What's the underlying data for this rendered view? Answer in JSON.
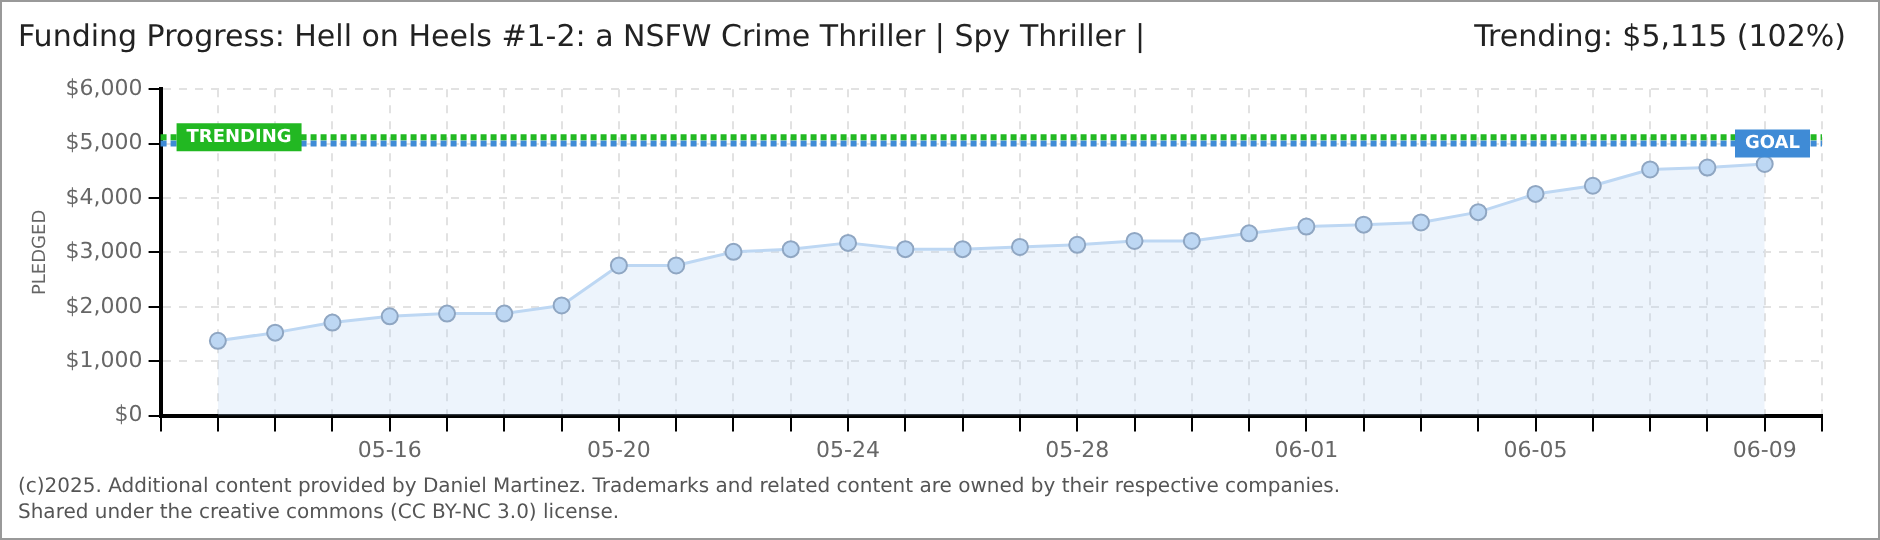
{
  "chart_data": {
    "type": "area",
    "title": "Funding Progress: Hell on Heels #1-2: a NSFW Crime Thriller | Spy Thriller |",
    "subtitle": "Trending:  $5,115 (102%)",
    "ylabel": "PLEDGED",
    "x": [
      "--05-13",
      "--05-14",
      "--05-15",
      "--05-16",
      "--05-17",
      "--05-18",
      "--05-19",
      "--05-20",
      "--05-21",
      "--05-22",
      "--05-23",
      "--05-24",
      "--05-25",
      "--05-26",
      "--05-27",
      "--05-28",
      "--05-29",
      "--05-30",
      "--05-31",
      "--06-01",
      "--06-02",
      "--06-03",
      "--06-04",
      "--06-05",
      "--06-06",
      "--06-07",
      "--06-08",
      "--06-09"
    ],
    "series": [
      {
        "color": "#bdd7f3",
        "values": [
          1375,
          1525,
          1710,
          1825,
          1875,
          1875,
          2025,
          2760,
          2760,
          3010,
          3060,
          3175,
          3060,
          3060,
          3100,
          3140,
          3210,
          3210,
          3350,
          3475,
          3510,
          3550,
          3740,
          4075,
          4225,
          4525,
          4560,
          4625
        ]
      }
    ],
    "xlim": [
      "--05-12",
      "--06-10"
    ],
    "xticks": [
      {
        "value": "--05-12",
        "label": null
      },
      {
        "value": "--05-13",
        "label": null
      },
      {
        "value": "--05-14",
        "label": null
      },
      {
        "value": "--05-15",
        "label": null
      },
      {
        "value": "--05-16",
        "label": "05-16"
      },
      {
        "value": "--05-17",
        "label": null
      },
      {
        "value": "--05-18",
        "label": null
      },
      {
        "value": "--05-19",
        "label": null
      },
      {
        "value": "--05-20",
        "label": "05-20"
      },
      {
        "value": "--05-21",
        "label": null
      },
      {
        "value": "--05-22",
        "label": null
      },
      {
        "value": "--05-23",
        "label": null
      },
      {
        "value": "--05-24",
        "label": "05-24"
      },
      {
        "value": "--05-25",
        "label": null
      },
      {
        "value": "--05-26",
        "label": null
      },
      {
        "value": "--05-27",
        "label": null
      },
      {
        "value": "--05-28",
        "label": "05-28"
      },
      {
        "value": "--05-29",
        "label": null
      },
      {
        "value": "--05-30",
        "label": null
      },
      {
        "value": "--05-31",
        "label": null
      },
      {
        "value": "--06-01",
        "label": "06-01"
      },
      {
        "value": "--06-02",
        "label": null
      },
      {
        "value": "--06-03",
        "label": null
      },
      {
        "value": "--06-04",
        "label": null
      },
      {
        "value": "--06-05",
        "label": "06-05"
      },
      {
        "value": "--06-06",
        "label": null
      },
      {
        "value": "--06-07",
        "label": null
      },
      {
        "value": "--06-08",
        "label": null
      },
      {
        "value": "--06-09",
        "label": "06-09"
      },
      {
        "value": "--06-10",
        "label": null
      }
    ],
    "ylim": [
      0,
      6000
    ],
    "yticks": [
      {
        "value": 0,
        "label": "$0"
      },
      {
        "value": 1000,
        "label": "$1,000"
      },
      {
        "value": 2000,
        "label": "$2,000"
      },
      {
        "value": 3000,
        "label": "$3,000"
      },
      {
        "value": 4000,
        "label": "$4,000"
      },
      {
        "value": 5000,
        "label": "$5,000"
      },
      {
        "value": 6000,
        "label": "$6,000"
      }
    ],
    "ref_lines": [
      {
        "axis": "y",
        "value": 5000,
        "label": "GOAL",
        "color": "#3f8bd6",
        "line_style": "dotted"
      },
      {
        "axis": "y",
        "value": 5115,
        "label": "TRENDING",
        "color": "#22b822",
        "line_style": "dotted"
      }
    ],
    "grid": true,
    "marker": "circle",
    "legend": false,
    "annotations": [
      "(c)2025. Additional content provided by Daniel Martinez. Trademarks and related content are owned by their respective companies.",
      "Shared under the creative commons (CC BY-NC 3.0) license."
    ]
  }
}
